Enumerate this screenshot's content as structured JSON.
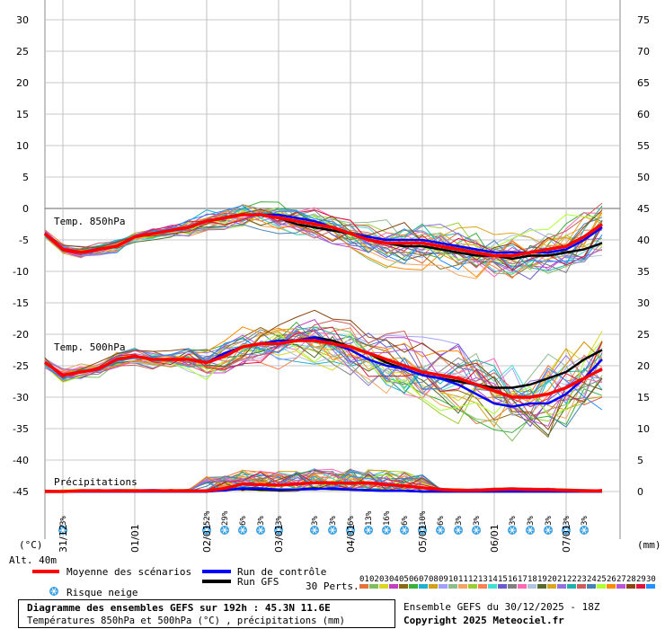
{
  "chart_data": {
    "type": "line",
    "left_axis": {
      "unit": "(°C)",
      "ticks": [
        30,
        25,
        20,
        15,
        10,
        5,
        0,
        -5,
        -10,
        -15,
        -20,
        -25,
        -30,
        -35,
        -40,
        -45
      ],
      "range": [
        -45,
        30
      ]
    },
    "right_axis": {
      "unit": "(mm)",
      "ticks": [
        75,
        70,
        65,
        60,
        55,
        50,
        45,
        40,
        35,
        30,
        25,
        20,
        15,
        10,
        5,
        0
      ],
      "range": [
        0,
        75
      ]
    },
    "x_dates": [
      "31/12",
      "01/01",
      "02/01",
      "03/01",
      "04/01",
      "05/01",
      "06/01",
      "07/01"
    ],
    "x_range_hours": [
      0,
      192
    ],
    "altitude": "Alt. 40m",
    "panel_labels": {
      "t850": "Temp. 850hPa",
      "t500": "Temp. 500hPa",
      "precip": "Précipitations"
    },
    "series": [
      {
        "name": "Moyenne des scénarios",
        "color": "#ff0000",
        "t850": [
          -4,
          -6.5,
          -7,
          -6.5,
          -6,
          -4.5,
          -4,
          -3.5,
          -3,
          -2,
          -1.5,
          -1,
          -1,
          -1.5,
          -2,
          -2.5,
          -3,
          -4,
          -5,
          -5.5,
          -5.5,
          -5.5,
          -6,
          -6.5,
          -7,
          -7.5,
          -7.5,
          -7,
          -6.5,
          -6,
          -4.5,
          -2.5
        ],
        "t500": [
          -24.5,
          -26.5,
          -26,
          -25.5,
          -24,
          -23.5,
          -24,
          -24,
          -24,
          -24.5,
          -23.5,
          -22,
          -21.5,
          -21.5,
          -21,
          -21,
          -21.5,
          -22,
          -23,
          -24,
          -25,
          -26,
          -26.5,
          -27,
          -28,
          -29,
          -30,
          -30,
          -29.5,
          -28.5,
          -27,
          -25.5
        ],
        "precip": [
          0,
          0,
          0.1,
          0.1,
          0.1,
          0.1,
          0.1,
          0.1,
          0.1,
          0.1,
          0.5,
          1.2,
          1.1,
          1,
          1.2,
          1.4,
          1.4,
          1.3,
          1.4,
          1.1,
          0.9,
          0.6,
          0.3,
          0.2,
          0.2,
          0.3,
          0.4,
          0.3,
          0.3,
          0.2,
          0.1,
          0.1
        ]
      },
      {
        "name": "Run de contrôle",
        "color": "#0000ff",
        "t850": [
          -4,
          -6.5,
          -7,
          -6.5,
          -6,
          -4.5,
          -4,
          -3.5,
          -3,
          -2,
          -1.5,
          -1,
          -1,
          -1,
          -1.5,
          -2,
          -3,
          -4,
          -4.5,
          -5,
          -5,
          -5,
          -5.5,
          -6,
          -6.5,
          -7,
          -7,
          -7,
          -7,
          -6.5,
          -5,
          -3
        ],
        "t500": [
          -24.5,
          -26.5,
          -26,
          -25.5,
          -24,
          -23.5,
          -24,
          -24,
          -24,
          -24.5,
          -23,
          -22,
          -21.5,
          -21,
          -21,
          -20.5,
          -21.5,
          -22.5,
          -24,
          -25,
          -25.5,
          -26.5,
          -27,
          -28,
          -29.5,
          -31,
          -31.5,
          -31,
          -31,
          -29.5,
          -27,
          -24
        ],
        "precip": [
          0,
          0,
          0,
          0,
          0,
          0,
          0,
          0,
          0,
          0,
          0.2,
          0.5,
          0.5,
          0.3,
          0.3,
          0.4,
          0.5,
          0.3,
          0.2,
          0.1,
          0.1,
          0,
          0,
          0,
          0,
          0,
          0,
          0,
          0,
          0,
          0,
          0
        ]
      },
      {
        "name": "Run GFS",
        "color": "#000000",
        "t850": [
          -4,
          -6.5,
          -7,
          -6.5,
          -6,
          -4.5,
          -4,
          -3.5,
          -3,
          -2,
          -1.5,
          -1,
          -1,
          -1.5,
          -2.5,
          -3,
          -3.5,
          -4,
          -5,
          -5.5,
          -6,
          -6,
          -6.5,
          -7,
          -7.5,
          -7.5,
          -8,
          -7.5,
          -7.5,
          -7,
          -6.5,
          -5.5
        ],
        "t500": [
          -24.5,
          -26.5,
          -26,
          -25.5,
          -24,
          -23.5,
          -24,
          -24,
          -24,
          -24.5,
          -23,
          -22,
          -21.5,
          -21.5,
          -21,
          -20.5,
          -21,
          -22,
          -23,
          -24.5,
          -25.5,
          -26.5,
          -27,
          -27.5,
          -28,
          -28.5,
          -28.5,
          -28,
          -27,
          -26,
          -24,
          -22.5
        ],
        "precip": [
          0,
          0,
          0,
          0,
          0,
          0,
          0,
          0,
          0,
          0,
          0.3,
          0.4,
          0.3,
          0.2,
          0.3,
          0.5,
          0.4,
          0.3,
          0.2,
          0.1,
          0.1,
          0,
          0,
          0,
          0,
          0,
          0,
          0,
          0,
          0,
          0,
          0
        ]
      }
    ],
    "snow_risk": [
      {
        "hour": 6,
        "pct": "3%"
      },
      {
        "hour": 54,
        "pct": "52%"
      },
      {
        "hour": 60,
        "pct": "29%"
      },
      {
        "hour": 66,
        "pct": "6%"
      },
      {
        "hour": 72,
        "pct": "3%"
      },
      {
        "hour": 78,
        "pct": "3%"
      },
      {
        "hour": 90,
        "pct": "3%"
      },
      {
        "hour": 96,
        "pct": "3%"
      },
      {
        "hour": 102,
        "pct": "6%"
      },
      {
        "hour": 108,
        "pct": "13%"
      },
      {
        "hour": 114,
        "pct": "16%"
      },
      {
        "hour": 120,
        "pct": "6%"
      },
      {
        "hour": 126,
        "pct": "10%"
      },
      {
        "hour": 132,
        "pct": "6%"
      },
      {
        "hour": 138,
        "pct": "3%"
      },
      {
        "hour": 144,
        "pct": "3%"
      },
      {
        "hour": 156,
        "pct": "3%"
      },
      {
        "hour": 162,
        "pct": "3%"
      },
      {
        "hour": 168,
        "pct": "3%"
      },
      {
        "hour": 174,
        "pct": "3%"
      },
      {
        "hour": 180,
        "pct": "3%"
      }
    ],
    "perturbations": {
      "label": "30 Perts.",
      "numbers": [
        "01",
        "02",
        "03",
        "04",
        "05",
        "06",
        "07",
        "08",
        "09",
        "10",
        "11",
        "12",
        "13",
        "14",
        "15",
        "16",
        "17",
        "18",
        "19",
        "20",
        "21",
        "22",
        "23",
        "24",
        "25",
        "26",
        "27",
        "28",
        "29",
        "30"
      ],
      "colors": [
        "#e8703a",
        "#7fbf5f",
        "#d8d820",
        "#c040c0",
        "#8b6914",
        "#3ab03a",
        "#20b0d0",
        "#d4a017",
        "#a0a0ff",
        "#8fbc8f",
        "#f4a460",
        "#9acd32",
        "#ff7f50",
        "#40e0d0",
        "#6a5acd",
        "#808080",
        "#ff69b4",
        "#b0c4de",
        "#556b2f",
        "#daa520",
        "#9370db",
        "#20b2aa",
        "#cd5c5c",
        "#4682b4",
        "#adff2f",
        "#ff8c00",
        "#ba55d3",
        "#8b4513",
        "#dc143c",
        "#1e90ff"
      ]
    },
    "legend": {
      "mean": "Moyenne des scénarios",
      "control": "Run de contrôle",
      "gfs": "Run GFS",
      "snow": "Risque neige"
    },
    "title": "Diagramme des ensembles GEFS sur 192h : 45.3N 11.6E",
    "subtitle": "Températures 850hPa et 500hPa (°C) , précipitations (mm)",
    "run_info": "Ensemble GEFS du 30/12/2025 - 18Z",
    "copyright": "Copyright 2025 Meteociel.fr",
    "colors": {
      "mean": "#ff0000",
      "control": "#0000ff",
      "gfs": "#000000",
      "snow": "#3aa0e0"
    }
  }
}
